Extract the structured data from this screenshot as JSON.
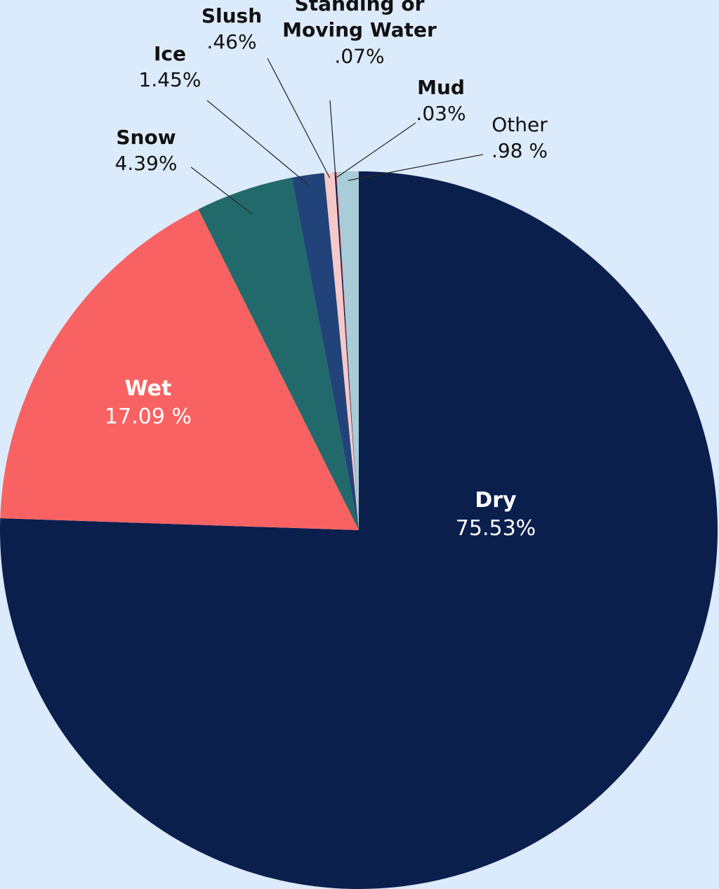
{
  "chart_data": {
    "type": "pie",
    "title": "",
    "start": "12 o'clock, clockwise",
    "slices": [
      {
        "name": "Dry",
        "value": 75.53,
        "value_label": "75.53%",
        "color": "#0b1f4d",
        "text_color": "#ffffff"
      },
      {
        "name": "Wet",
        "value": 17.09,
        "value_label": "17.09 %",
        "color": "#f96262",
        "text_color": "#ffffff"
      },
      {
        "name": "Snow",
        "value": 4.39,
        "value_label": "4.39%",
        "color": "#22696b",
        "text_color": "#111111"
      },
      {
        "name": "Ice",
        "value": 1.45,
        "value_label": "1.45%",
        "color": "#22427a",
        "text_color": "#111111"
      },
      {
        "name": "Slush",
        "value": 0.46,
        "value_label": ".46%",
        "color": "#f5c9c8",
        "text_color": "#111111"
      },
      {
        "name": "Standing or Moving Water",
        "name_lines": [
          "Standing or",
          "Moving Water"
        ],
        "value": 0.07,
        "value_label": ".07%",
        "color": "#0b1f4d",
        "text_color": "#111111"
      },
      {
        "name": "Mud",
        "value": 0.03,
        "value_label": ".03%",
        "color": "#f96262",
        "text_color": "#111111"
      },
      {
        "name": "Other",
        "value": 0.98,
        "value_label": ".98 %",
        "color": "#a8ccd8",
        "text_color": "#111111",
        "name_weight": "normal"
      }
    ]
  }
}
